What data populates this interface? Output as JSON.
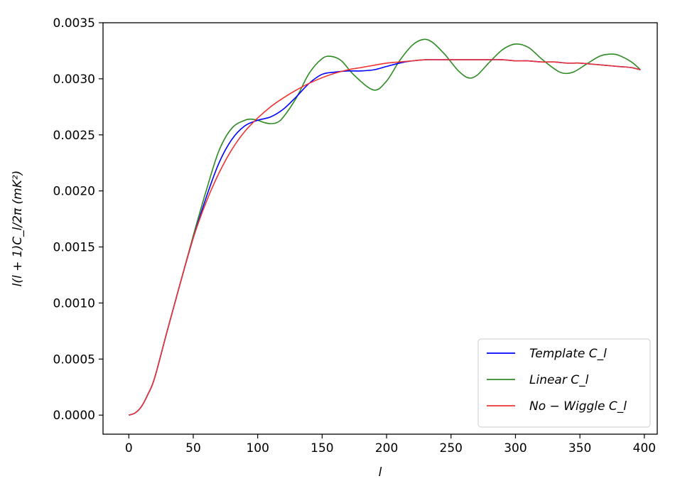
{
  "chart_data": {
    "type": "line",
    "title": "",
    "xlabel": "l",
    "ylabel": "l(l + 1)C_l/2π    (mK²)",
    "xlim": [
      -20,
      410
    ],
    "ylim": [
      -0.00017,
      0.0035
    ],
    "xticks": [
      0,
      50,
      100,
      150,
      200,
      250,
      300,
      350,
      400
    ],
    "xtick_labels": [
      "0",
      "50",
      "100",
      "150",
      "200",
      "250",
      "300",
      "350",
      "400"
    ],
    "yticks": [
      0,
      0.0005,
      0.001,
      0.0015,
      0.002,
      0.0025,
      0.003,
      0.0035
    ],
    "ytick_labels": [
      "0.0000",
      "0.0005",
      "0.0010",
      "0.0015",
      "0.0020",
      "0.0025",
      "0.0030",
      "0.0035"
    ],
    "grid": false,
    "legend_position": "bottom-right",
    "series": [
      {
        "name": "Template C_l",
        "color": "#0000ff",
        "x": [
          0,
          5,
          10,
          15,
          20,
          30,
          40,
          50,
          60,
          70,
          80,
          90,
          100,
          110,
          120,
          130,
          140,
          150,
          160,
          170,
          180,
          190,
          200,
          210,
          220,
          230,
          240,
          250,
          260,
          270,
          280,
          290,
          300,
          310,
          320,
          330,
          340,
          350,
          360,
          370,
          380,
          390,
          397
        ],
        "y": [
          0.0,
          2e-05,
          8e-05,
          0.00019,
          0.00033,
          0.00076,
          0.00118,
          0.00158,
          0.00194,
          0.00225,
          0.00246,
          0.00258,
          0.00263,
          0.00266,
          0.00273,
          0.00284,
          0.00296,
          0.00304,
          0.00306,
          0.00307,
          0.00307,
          0.00308,
          0.00311,
          0.00314,
          0.00316,
          0.00317,
          0.00317,
          0.00317,
          0.00317,
          0.00317,
          0.00317,
          0.00317,
          0.00316,
          0.00316,
          0.00315,
          0.00315,
          0.00314,
          0.00314,
          0.00313,
          0.00312,
          0.00311,
          0.0031,
          0.00308
        ]
      },
      {
        "name": "Linear C_l",
        "color": "#2e8b24",
        "x": [
          0,
          5,
          10,
          15,
          20,
          30,
          40,
          50,
          60,
          70,
          80,
          90,
          95,
          100,
          105,
          110,
          115,
          120,
          130,
          140,
          150,
          157,
          165,
          175,
          190,
          200,
          210,
          220,
          228,
          235,
          245,
          255,
          263,
          270,
          280,
          290,
          300,
          310,
          320,
          330,
          337,
          345,
          355,
          365,
          373,
          380,
          390,
          397
        ],
        "y": [
          0.0,
          2e-05,
          8e-05,
          0.00019,
          0.00033,
          0.00076,
          0.00118,
          0.0016,
          0.002,
          0.00236,
          0.00256,
          0.00263,
          0.00264,
          0.00263,
          0.00261,
          0.0026,
          0.00261,
          0.00266,
          0.00283,
          0.00305,
          0.00318,
          0.0032,
          0.00316,
          0.00303,
          0.0029,
          0.00298,
          0.00316,
          0.0033,
          0.00335,
          0.00333,
          0.00322,
          0.00308,
          0.00301,
          0.00303,
          0.00315,
          0.00326,
          0.00331,
          0.00328,
          0.00318,
          0.00309,
          0.00305,
          0.00306,
          0.00313,
          0.0032,
          0.00322,
          0.00321,
          0.00315,
          0.00308
        ]
      },
      {
        "name": "No − Wiggle C_l",
        "color": "#ee3333",
        "x": [
          0,
          5,
          10,
          15,
          20,
          30,
          40,
          50,
          60,
          70,
          80,
          90,
          100,
          110,
          120,
          130,
          140,
          150,
          160,
          170,
          180,
          190,
          200,
          210,
          220,
          230,
          240,
          250,
          260,
          270,
          280,
          290,
          300,
          310,
          320,
          330,
          340,
          350,
          360,
          370,
          380,
          390,
          397
        ],
        "y": [
          0.0,
          2e-05,
          8e-05,
          0.00019,
          0.00033,
          0.00076,
          0.00118,
          0.00158,
          0.0019,
          0.00216,
          0.00237,
          0.00253,
          0.00265,
          0.00275,
          0.00283,
          0.0029,
          0.00296,
          0.00301,
          0.00305,
          0.00308,
          0.0031,
          0.00312,
          0.00314,
          0.00315,
          0.00316,
          0.00317,
          0.00317,
          0.00317,
          0.00317,
          0.00317,
          0.00317,
          0.00317,
          0.00316,
          0.00316,
          0.00315,
          0.00315,
          0.00314,
          0.00314,
          0.00313,
          0.00312,
          0.00311,
          0.0031,
          0.00308
        ]
      }
    ]
  }
}
